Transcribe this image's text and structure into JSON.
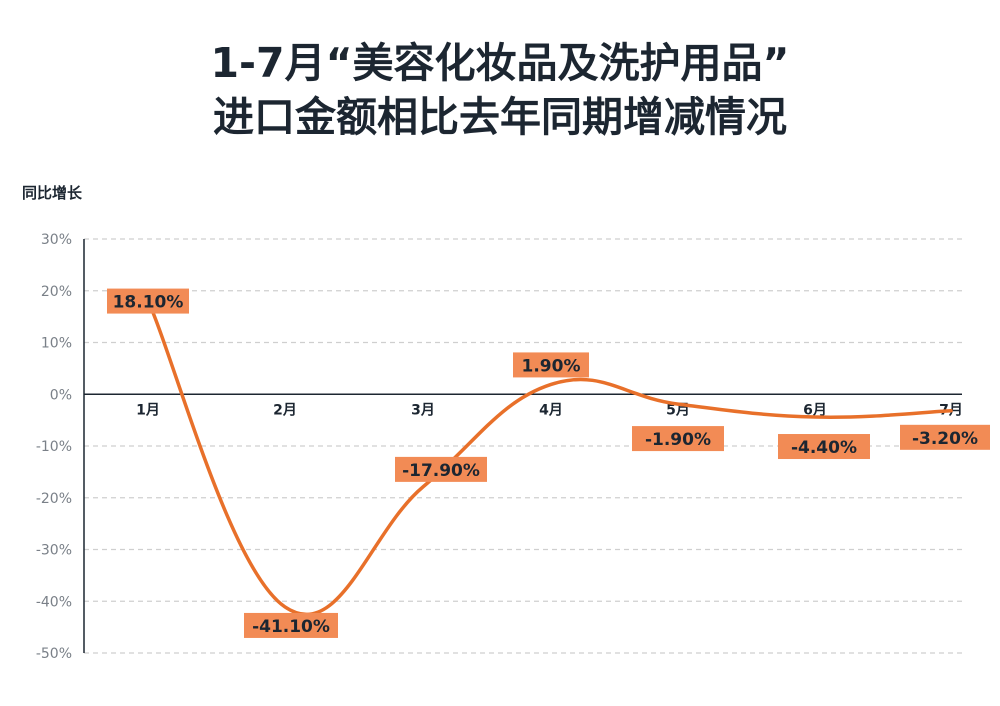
{
  "header": {
    "title_line1": "1-7月“美容化妆品及洗护用品”",
    "title_line2": "进口金额相比去年同期增减情况"
  },
  "colors": {
    "line": "#e8702a",
    "label_bg": "#f28b55",
    "grid": "#cfcfcf",
    "axis": "#1c2631"
  },
  "chart_data": {
    "type": "line",
    "title": "1-7月“美容化妆品及洗护用品”进口金额相比去年同期增减情况",
    "ylabel": "同比增长",
    "xlabel": "",
    "categories": [
      "1月",
      "2月",
      "3月",
      "4月",
      "5月",
      "6月",
      "7月"
    ],
    "values": [
      18.1,
      -41.1,
      -17.9,
      1.9,
      -1.9,
      -4.4,
      -3.2
    ],
    "data_labels": [
      "18.10%",
      "-41.10%",
      "-17.90%",
      "1.90%",
      "-1.90%",
      "-4.40%",
      "-3.20%"
    ],
    "yticks": [
      30,
      20,
      10,
      0,
      -10,
      -20,
      -30,
      -40,
      -50
    ],
    "ytick_labels": [
      "30%",
      "20%",
      "10%",
      "0%",
      "-10%",
      "-20%",
      "-30%",
      "-40%",
      "-50%"
    ],
    "ylim": [
      -50,
      30
    ],
    "grid": true
  }
}
